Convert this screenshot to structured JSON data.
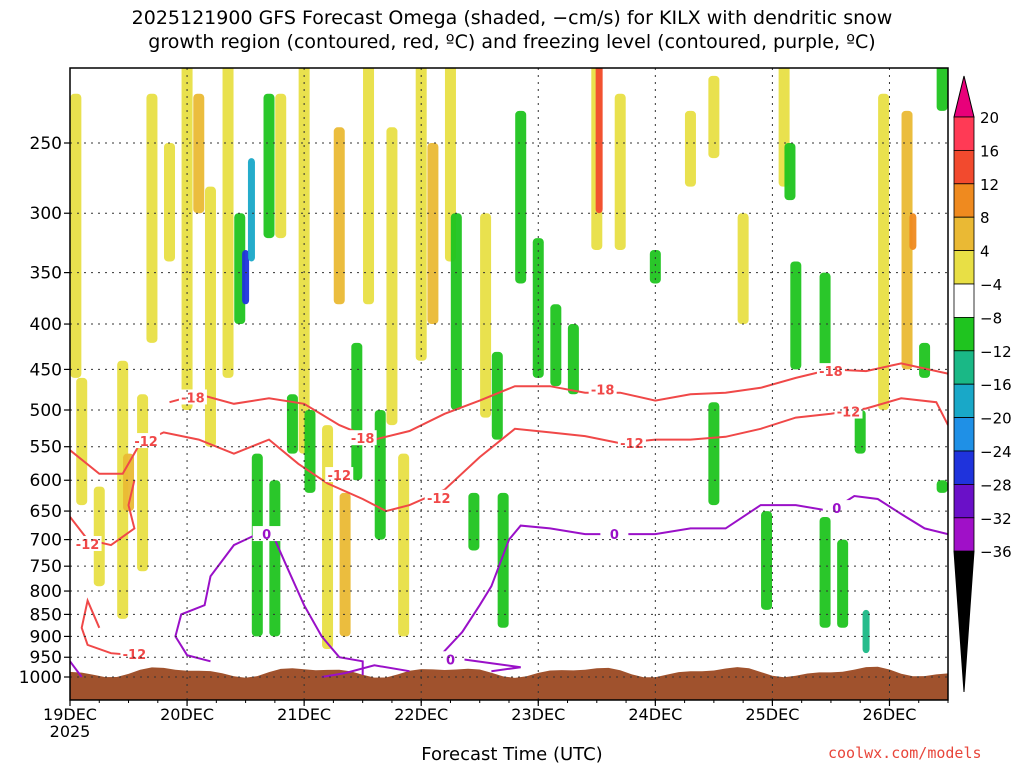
{
  "chart_data": {
    "type": "heatmap",
    "title": "2025121900 GFS Forecast Omega (shaded, −cm/s) for KILX with dendritic snow\ngrowth region (contoured, red, ºC) and freezing level (contoured, purple, ºC)",
    "xlabel": "Forecast Time (UTC)",
    "ylabel": "",
    "y_scale": "log-pressure (inverted)",
    "ylim": [
      1000,
      200
    ],
    "yticks": [
      250,
      300,
      350,
      400,
      450,
      500,
      550,
      600,
      650,
      700,
      750,
      800,
      850,
      900,
      950,
      1000
    ],
    "x_ticks": [
      {
        "day": 19,
        "label": "19DEC",
        "sublabel": "2025"
      },
      {
        "day": 20,
        "label": "20DEC",
        "sublabel": ""
      },
      {
        "day": 21,
        "label": "21DEC",
        "sublabel": ""
      },
      {
        "day": 22,
        "label": "22DEC",
        "sublabel": ""
      },
      {
        "day": 23,
        "label": "23DEC",
        "sublabel": ""
      },
      {
        "day": 24,
        "label": "24DEC",
        "sublabel": ""
      },
      {
        "day": 25,
        "label": "25DEC",
        "sublabel": ""
      },
      {
        "day": 26,
        "label": "26DEC",
        "sublabel": ""
      }
    ],
    "xlim": [
      19.0,
      26.5
    ],
    "grid": true,
    "colorbar": {
      "labels": [
        "20",
        "16",
        "12",
        "8",
        "4",
        "−4",
        "−8",
        "−12",
        "−16",
        "−20",
        "−24",
        "−28",
        "−32",
        "−36"
      ],
      "colors": [
        "#ff3a55",
        "#f24a2e",
        "#ef8a1f",
        "#eab934",
        "#e8df45",
        "#ffffff",
        "#1fc41f",
        "#1ab886",
        "#19a8c8",
        "#1f90e6",
        "#1f33dc",
        "#6a10c8",
        "#a010c8",
        "#a8a8a8"
      ],
      "top_color": "#e8007a",
      "bottom_color": "#000000"
    },
    "terrain_color": "#a0522d",
    "omega_patches": [
      {
        "x": 19.05,
        "p1": 220,
        "p2": 460,
        "v": 4
      },
      {
        "x": 19.1,
        "p1": 460,
        "p2": 640,
        "v": 4
      },
      {
        "x": 19.25,
        "p1": 610,
        "p2": 790,
        "v": 4
      },
      {
        "x": 19.45,
        "p1": 440,
        "p2": 860,
        "v": 4
      },
      {
        "x": 19.5,
        "p1": 560,
        "p2": 650,
        "v": 8
      },
      {
        "x": 19.62,
        "p1": 480,
        "p2": 760,
        "v": 4
      },
      {
        "x": 19.7,
        "p1": 220,
        "p2": 420,
        "v": 4
      },
      {
        "x": 19.85,
        "p1": 250,
        "p2": 340,
        "v": 4
      },
      {
        "x": 20.0,
        "p1": 200,
        "p2": 500,
        "v": 4
      },
      {
        "x": 20.1,
        "p1": 220,
        "p2": 300,
        "v": 8
      },
      {
        "x": 20.2,
        "p1": 280,
        "p2": 550,
        "v": 4
      },
      {
        "x": 20.35,
        "p1": 200,
        "p2": 460,
        "v": 4
      },
      {
        "x": 20.45,
        "p1": 300,
        "p2": 400,
        "v": -8
      },
      {
        "x": 20.5,
        "p1": 330,
        "p2": 380,
        "v": -24
      },
      {
        "x": 20.55,
        "p1": 260,
        "p2": 340,
        "v": -16
      },
      {
        "x": 20.6,
        "p1": 560,
        "p2": 900,
        "v": -8
      },
      {
        "x": 20.7,
        "p1": 220,
        "p2": 320,
        "v": -8
      },
      {
        "x": 20.75,
        "p1": 600,
        "p2": 900,
        "v": -8
      },
      {
        "x": 20.8,
        "p1": 220,
        "p2": 320,
        "v": 4
      },
      {
        "x": 20.9,
        "p1": 480,
        "p2": 560,
        "v": -8
      },
      {
        "x": 21.0,
        "p1": 200,
        "p2": 560,
        "v": 4
      },
      {
        "x": 21.05,
        "p1": 500,
        "p2": 620,
        "v": -8
      },
      {
        "x": 21.2,
        "p1": 520,
        "p2": 930,
        "v": 4
      },
      {
        "x": 21.3,
        "p1": 240,
        "p2": 380,
        "v": 8
      },
      {
        "x": 21.35,
        "p1": 620,
        "p2": 900,
        "v": 8
      },
      {
        "x": 21.45,
        "p1": 420,
        "p2": 600,
        "v": -8
      },
      {
        "x": 21.55,
        "p1": 200,
        "p2": 380,
        "v": 4
      },
      {
        "x": 21.65,
        "p1": 500,
        "p2": 700,
        "v": -8
      },
      {
        "x": 21.75,
        "p1": 240,
        "p2": 520,
        "v": 4
      },
      {
        "x": 21.85,
        "p1": 560,
        "p2": 900,
        "v": 4
      },
      {
        "x": 22.0,
        "p1": 200,
        "p2": 440,
        "v": 4
      },
      {
        "x": 22.1,
        "p1": 250,
        "p2": 400,
        "v": 8
      },
      {
        "x": 22.25,
        "p1": 200,
        "p2": 340,
        "v": 4
      },
      {
        "x": 22.3,
        "p1": 300,
        "p2": 500,
        "v": -8
      },
      {
        "x": 22.45,
        "p1": 620,
        "p2": 720,
        "v": -8
      },
      {
        "x": 22.55,
        "p1": 300,
        "p2": 510,
        "v": 4
      },
      {
        "x": 22.65,
        "p1": 430,
        "p2": 540,
        "v": -8
      },
      {
        "x": 22.7,
        "p1": 620,
        "p2": 880,
        "v": -8
      },
      {
        "x": 22.85,
        "p1": 230,
        "p2": 360,
        "v": -8
      },
      {
        "x": 23.0,
        "p1": 320,
        "p2": 460,
        "v": -8
      },
      {
        "x": 23.15,
        "p1": 380,
        "p2": 470,
        "v": -8
      },
      {
        "x": 23.3,
        "p1": 400,
        "p2": 480,
        "v": -8
      },
      {
        "x": 23.5,
        "p1": 200,
        "p2": 330,
        "v": 4
      },
      {
        "x": 23.52,
        "p1": 200,
        "p2": 300,
        "v": 16
      },
      {
        "x": 23.7,
        "p1": 220,
        "p2": 330,
        "v": 4
      },
      {
        "x": 24.0,
        "p1": 330,
        "p2": 360,
        "v": -8
      },
      {
        "x": 24.3,
        "p1": 230,
        "p2": 280,
        "v": 4
      },
      {
        "x": 24.5,
        "p1": 210,
        "p2": 260,
        "v": 4
      },
      {
        "x": 24.5,
        "p1": 490,
        "p2": 640,
        "v": -8
      },
      {
        "x": 24.75,
        "p1": 300,
        "p2": 400,
        "v": 4
      },
      {
        "x": 24.95,
        "p1": 650,
        "p2": 840,
        "v": -8
      },
      {
        "x": 25.1,
        "p1": 200,
        "p2": 280,
        "v": 4
      },
      {
        "x": 25.15,
        "p1": 250,
        "p2": 290,
        "v": -8
      },
      {
        "x": 25.2,
        "p1": 340,
        "p2": 450,
        "v": -8
      },
      {
        "x": 25.45,
        "p1": 350,
        "p2": 460,
        "v": -8
      },
      {
        "x": 25.45,
        "p1": 660,
        "p2": 880,
        "v": -8
      },
      {
        "x": 25.6,
        "p1": 700,
        "p2": 880,
        "v": -8
      },
      {
        "x": 25.8,
        "p1": 840,
        "p2": 940,
        "v": -12
      },
      {
        "x": 25.75,
        "p1": 500,
        "p2": 560,
        "v": -8
      },
      {
        "x": 25.95,
        "p1": 220,
        "p2": 500,
        "v": 4
      },
      {
        "x": 26.15,
        "p1": 230,
        "p2": 450,
        "v": 8
      },
      {
        "x": 26.2,
        "p1": 300,
        "p2": 330,
        "v": 12
      },
      {
        "x": 26.3,
        "p1": 420,
        "p2": 460,
        "v": -8
      },
      {
        "x": 26.45,
        "p1": 600,
        "p2": 620,
        "v": -8
      },
      {
        "x": 26.45,
        "p1": 200,
        "p2": 230,
        "v": -8
      }
    ],
    "contours": [
      {
        "level": "-18",
        "color": "#f04848",
        "points": [
          [
            19.85,
            490
          ],
          [
            20.1,
            480
          ],
          [
            20.4,
            492
          ],
          [
            20.7,
            485
          ],
          [
            21.0,
            492
          ],
          [
            21.3,
            520
          ],
          [
            21.6,
            540
          ],
          [
            21.9,
            528
          ],
          [
            22.2,
            505
          ],
          [
            22.5,
            488
          ],
          [
            22.8,
            470
          ],
          [
            23.1,
            470
          ],
          [
            23.4,
            478
          ],
          [
            23.7,
            478
          ],
          [
            24.0,
            488
          ],
          [
            24.3,
            480
          ],
          [
            24.6,
            478
          ],
          [
            24.9,
            472
          ],
          [
            25.2,
            460
          ],
          [
            25.5,
            450
          ],
          [
            25.8,
            452
          ],
          [
            26.1,
            443
          ],
          [
            26.5,
            455
          ]
        ],
        "labels": [
          [
            20.05,
            484
          ],
          [
            21.5,
            538
          ],
          [
            23.55,
            474
          ],
          [
            25.5,
            452
          ]
        ]
      },
      {
        "level": "-12",
        "color": "#f04848",
        "points": [
          [
            19.0,
            555
          ],
          [
            19.25,
            590
          ],
          [
            19.45,
            590
          ],
          [
            19.6,
            545
          ],
          [
            19.8,
            530
          ],
          [
            20.1,
            540
          ],
          [
            20.4,
            560
          ],
          [
            20.7,
            540
          ],
          [
            20.95,
            575
          ],
          [
            21.2,
            605
          ],
          [
            21.5,
            630
          ],
          [
            21.7,
            650
          ],
          [
            21.9,
            640
          ],
          [
            22.2,
            615
          ],
          [
            22.5,
            565
          ],
          [
            22.8,
            525
          ],
          [
            23.1,
            530
          ],
          [
            23.4,
            535
          ],
          [
            23.7,
            545
          ],
          [
            24.0,
            540
          ],
          [
            24.3,
            540
          ],
          [
            24.6,
            536
          ],
          [
            24.9,
            525
          ],
          [
            25.2,
            510
          ],
          [
            25.5,
            505
          ],
          [
            25.8,
            498
          ],
          [
            26.1,
            485
          ],
          [
            26.4,
            490
          ],
          [
            26.5,
            520
          ]
        ],
        "labels": [
          [
            19.65,
            542
          ],
          [
            21.3,
            592
          ],
          [
            22.15,
            628
          ],
          [
            23.8,
            545
          ],
          [
            25.65,
            502
          ]
        ]
      },
      {
        "level": "-12",
        "color": "#f04848",
        "points": [
          [
            19.0,
            660
          ],
          [
            19.15,
            700
          ],
          [
            19.35,
            710
          ],
          [
            19.55,
            680
          ],
          [
            19.5,
            640
          ],
          [
            19.55,
            600
          ]
        ],
        "labels": [
          [
            19.15,
            708
          ]
        ]
      },
      {
        "level": "-12",
        "color": "#f04848",
        "points": [
          [
            19.25,
            880
          ],
          [
            19.15,
            820
          ],
          [
            19.1,
            880
          ],
          [
            19.15,
            920
          ],
          [
            19.35,
            940
          ],
          [
            19.55,
            945
          ]
        ],
        "labels": [
          [
            19.55,
            942
          ]
        ]
      },
      {
        "level": "0",
        "color": "#9a10c8",
        "points": [
          [
            19.0,
            960
          ],
          [
            19.1,
            1000
          ]
        ],
        "labels": []
      },
      {
        "level": "0",
        "color": "#9a10c8",
        "points": [
          [
            20.2,
            960
          ],
          [
            20.0,
            945
          ],
          [
            19.9,
            900
          ],
          [
            19.95,
            850
          ],
          [
            20.15,
            830
          ],
          [
            20.2,
            770
          ],
          [
            20.4,
            710
          ],
          [
            20.6,
            690
          ],
          [
            20.75,
            700
          ],
          [
            20.85,
            750
          ],
          [
            21.0,
            830
          ],
          [
            21.15,
            900
          ],
          [
            21.3,
            950
          ],
          [
            21.5,
            960
          ],
          [
            21.5,
            995
          ]
        ],
        "labels": [
          [
            20.68,
            690
          ]
        ]
      },
      {
        "level": "0",
        "color": "#9a10c8",
        "points": [
          [
            21.15,
            1000
          ],
          [
            21.35,
            990
          ],
          [
            21.6,
            970
          ],
          [
            21.9,
            985
          ]
        ],
        "labels": []
      },
      {
        "level": "0",
        "color": "#9a10c8",
        "points": [
          [
            22.15,
            950
          ],
          [
            22.35,
            890
          ],
          [
            22.5,
            830
          ],
          [
            22.6,
            790
          ],
          [
            22.75,
            700
          ],
          [
            22.85,
            675
          ],
          [
            23.1,
            680
          ],
          [
            23.4,
            690
          ],
          [
            23.7,
            690
          ],
          [
            24.0,
            690
          ],
          [
            24.3,
            680
          ],
          [
            24.6,
            680
          ],
          [
            24.9,
            640
          ],
          [
            25.2,
            640
          ],
          [
            25.5,
            650
          ],
          [
            25.7,
            625
          ],
          [
            25.9,
            630
          ],
          [
            26.1,
            655
          ],
          [
            26.3,
            680
          ],
          [
            26.5,
            690
          ]
        ],
        "labels": [
          [
            23.65,
            690
          ],
          [
            25.55,
            645
          ]
        ]
      },
      {
        "level": "0",
        "color": "#9a10c8",
        "points": [
          [
            22.35,
            955
          ],
          [
            22.6,
            965
          ],
          [
            22.85,
            975
          ],
          [
            22.6,
            985
          ]
        ],
        "labels": [
          [
            22.25,
            955
          ]
        ]
      }
    ]
  }
}
